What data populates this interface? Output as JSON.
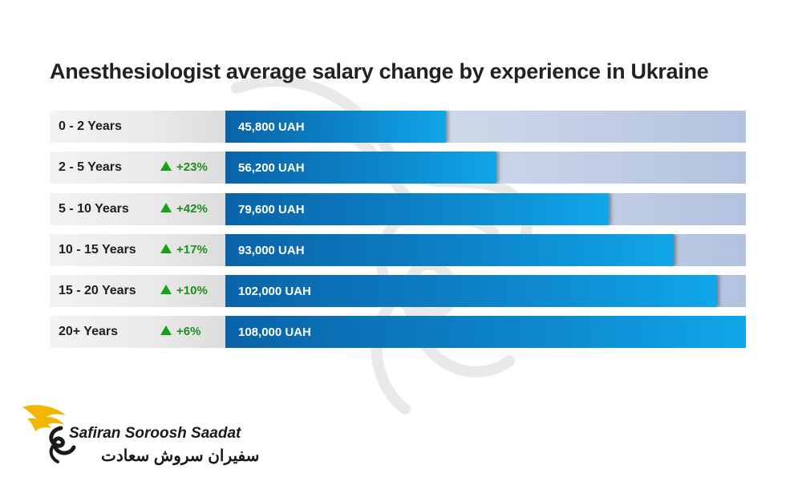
{
  "chart_data": {
    "type": "bar",
    "orientation": "horizontal",
    "title": "Anesthesiologist average salary change by experience in Ukraine",
    "categories": [
      "0 - 2 Years",
      "2 - 5 Years",
      "5 - 10 Years",
      "10 - 15 Years",
      "15 - 20 Years",
      "20+ Years"
    ],
    "values": [
      45800,
      56200,
      79600,
      93000,
      102000,
      108000
    ],
    "value_labels": [
      "45,800 UAH",
      "56,200 UAH",
      "79,600 UAH",
      "93,000 UAH",
      "102,000 UAH",
      "108,000 UAH"
    ],
    "changes": [
      "",
      "+23%",
      "+42%",
      "+17%",
      "+10%",
      "+6%"
    ],
    "xlim": [
      0,
      108000
    ],
    "colors": {
      "bar": "#0d84c9",
      "track": "#c9d4e8",
      "increase": "#17a117"
    }
  },
  "brand": {
    "name_en": "Safiran Soroosh Saadat",
    "name_fa": "سفیران سروش سعادت",
    "icon": "wing-swan-logo-icon",
    "color": "#f2b705"
  }
}
